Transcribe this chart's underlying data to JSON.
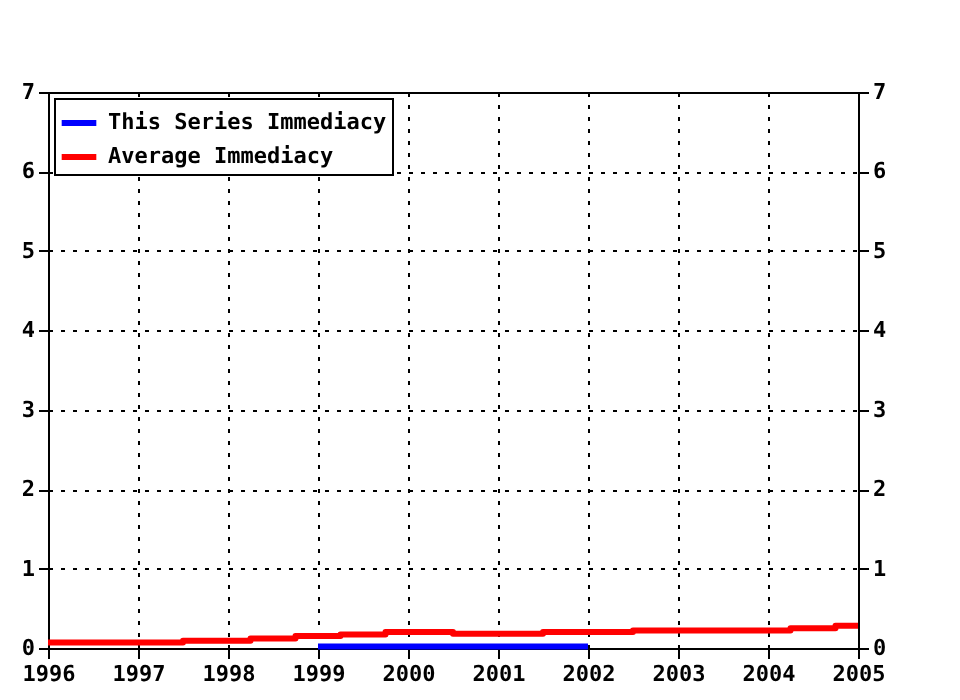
{
  "chart_data": {
    "type": "step",
    "xlim": [
      1996,
      2005
    ],
    "xticks": [
      1996,
      1997,
      1998,
      1999,
      2000,
      2001,
      2002,
      2003,
      2004,
      2005
    ],
    "ylim": [
      0,
      7
    ],
    "yticks": [
      0,
      1,
      2,
      3,
      4,
      5,
      6,
      7
    ],
    "y2lim": [
      0,
      7
    ],
    "y2ticks": [
      0,
      1,
      2,
      3,
      4,
      5,
      6,
      7
    ],
    "grid": true,
    "legend": "top left",
    "line_style": "solid",
    "marker": "none",
    "series": [
      {
        "name": "This Series Immediacy",
        "color": "#0000ff",
        "axis": "y",
        "x": [
          1999,
          2002
        ],
        "values": [
          0.02,
          0.02
        ]
      },
      {
        "name": "Average Immediacy",
        "color": "#ff0000",
        "axis": "y2",
        "x": [
          1996,
          1997.5,
          1998.25,
          1998.75,
          1999.25,
          1999.75,
          2000.5,
          2001.5,
          2002.5,
          2004.25,
          2004.75,
          2005
        ],
        "values": [
          0.07,
          0.09,
          0.12,
          0.15,
          0.17,
          0.2,
          0.18,
          0.2,
          0.22,
          0.25,
          0.28,
          0.28
        ]
      }
    ]
  }
}
